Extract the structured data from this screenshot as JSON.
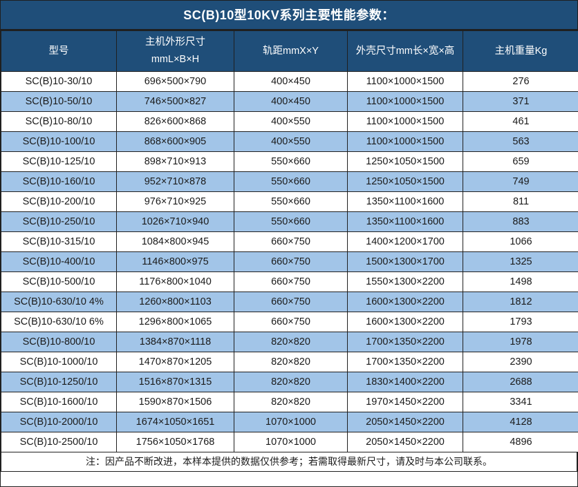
{
  "title": "SC(B)10型10KV系列主要性能参数：",
  "table": {
    "headers": [
      "型号",
      "主机外形尺寸\nmmL×B×H",
      "轨距mmX×Y",
      "外壳尺寸mm长×宽×高",
      "主机重量Kg"
    ],
    "rows": [
      [
        "SC(B)10-30/10",
        "696×500×790",
        "400×450",
        "1100×1000×1500",
        "276"
      ],
      [
        "SC(B)10-50/10",
        "746×500×827",
        "400×450",
        "1100×1000×1500",
        "371"
      ],
      [
        "SC(B)10-80/10",
        "826×600×868",
        "400×550",
        "1100×1000×1500",
        "461"
      ],
      [
        "SC(B)10-100/10",
        "868×600×905",
        "400×550",
        "1100×1000×1500",
        "563"
      ],
      [
        "SC(B)10-125/10",
        "898×710×913",
        "550×660",
        "1250×1050×1500",
        "659"
      ],
      [
        "SC(B)10-160/10",
        "952×710×878",
        "550×660",
        "1250×1050×1500",
        "749"
      ],
      [
        "SC(B)10-200/10",
        "976×710×925",
        "550×660",
        "1350×1100×1600",
        "811"
      ],
      [
        "SC(B)10-250/10",
        "1026×710×940",
        "550×660",
        "1350×1100×1600",
        "883"
      ],
      [
        "SC(B)10-315/10",
        "1084×800×945",
        "660×750",
        "1400×1200×1700",
        "1066"
      ],
      [
        "SC(B)10-400/10",
        "1146×800×975",
        "660×750",
        "1500×1300×1700",
        "1325"
      ],
      [
        "SC(B)10-500/10",
        "1176×800×1040",
        "660×750",
        "1550×1300×2200",
        "1498"
      ],
      [
        "SC(B)10-630/10 4%",
        "1260×800×1103",
        "660×750",
        "1600×1300×2200",
        "1812"
      ],
      [
        "SC(B)10-630/10 6%",
        "1296×800×1065",
        "660×750",
        "1600×1300×2200",
        "1793"
      ],
      [
        "SC(B)10-800/10",
        "1384×870×1118",
        "820×820",
        "1700×1350×2200",
        "1978"
      ],
      [
        "SC(B)10-1000/10",
        "1470×870×1205",
        "820×820",
        "1700×1350×2200",
        "2390"
      ],
      [
        "SC(B)10-1250/10",
        "1516×870×1315",
        "820×820",
        "1830×1400×2200",
        "2688"
      ],
      [
        "SC(B)10-1600/10",
        "1590×870×1506",
        "820×820",
        "1970×1450×2200",
        "3341"
      ],
      [
        "SC(B)10-2000/10",
        "1674×1050×1651",
        "1070×1000",
        "2050×1450×2200",
        "4128"
      ],
      [
        "SC(B)10-2500/10",
        "1756×1050×1768",
        "1070×1000",
        "2050×1450×2200",
        "4896"
      ]
    ]
  },
  "note": "注：因产品不断改进，本样本提供的数据仅供参考；若需取得最新尺寸，请及时与本公司联系。",
  "colors": {
    "header_bg": "#1F4E79",
    "row_alt_bg": "#A2C5E8",
    "border": "#1F1F1F",
    "text": "#1A1A1A",
    "header_text": "#FFFFFF"
  }
}
